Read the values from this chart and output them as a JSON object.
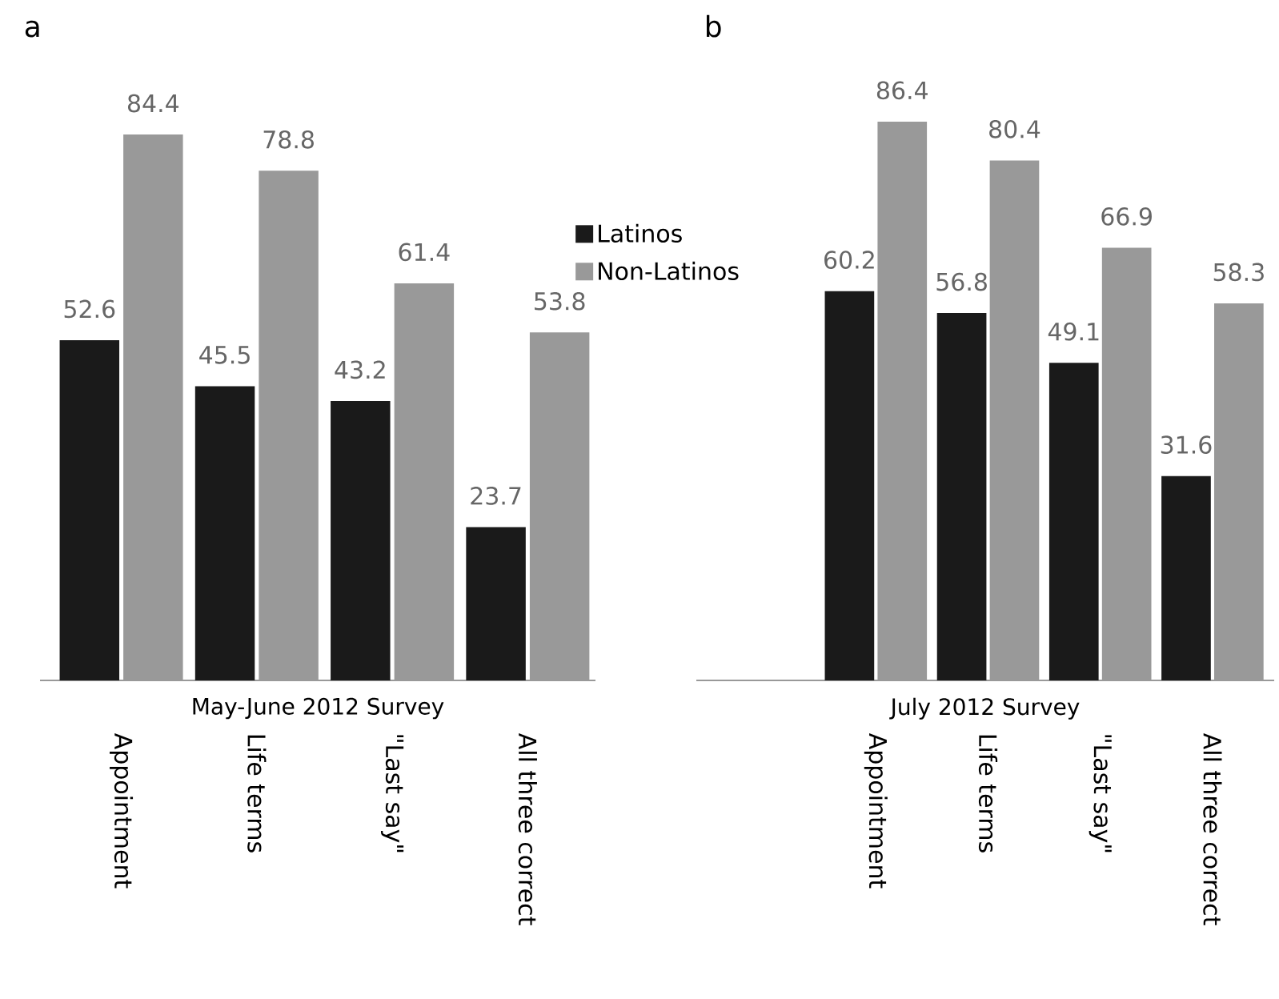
{
  "chart_data": [
    {
      "type": "bar",
      "title": "a",
      "xlabel": "May-June 2012 Survey",
      "categories": [
        "Appointment",
        "Life terms",
        "\"Last say\"",
        "All three correct"
      ],
      "data_labels": true,
      "legend": "top right",
      "series": [
        {
          "name": "Latinos",
          "color": "#1a1a1a",
          "values": [
            52.6,
            45.5,
            43.2,
            23.7
          ]
        },
        {
          "name": "Non-Latinos",
          "color": "#999999",
          "values": [
            84.4,
            78.8,
            61.4,
            53.8
          ]
        }
      ]
    },
    {
      "type": "bar",
      "title": "b",
      "xlabel": "July 2012 Survey",
      "categories": [
        "Appointment",
        "Life terms",
        "\"Last say\"",
        "All three correct"
      ],
      "data_labels": true,
      "series": [
        {
          "color": "#1a1a1a",
          "values": [
            60.2,
            56.8,
            49.1,
            31.6
          ]
        },
        {
          "color": "#999999",
          "values": [
            86.4,
            80.4,
            66.9,
            58.3
          ]
        }
      ]
    }
  ]
}
